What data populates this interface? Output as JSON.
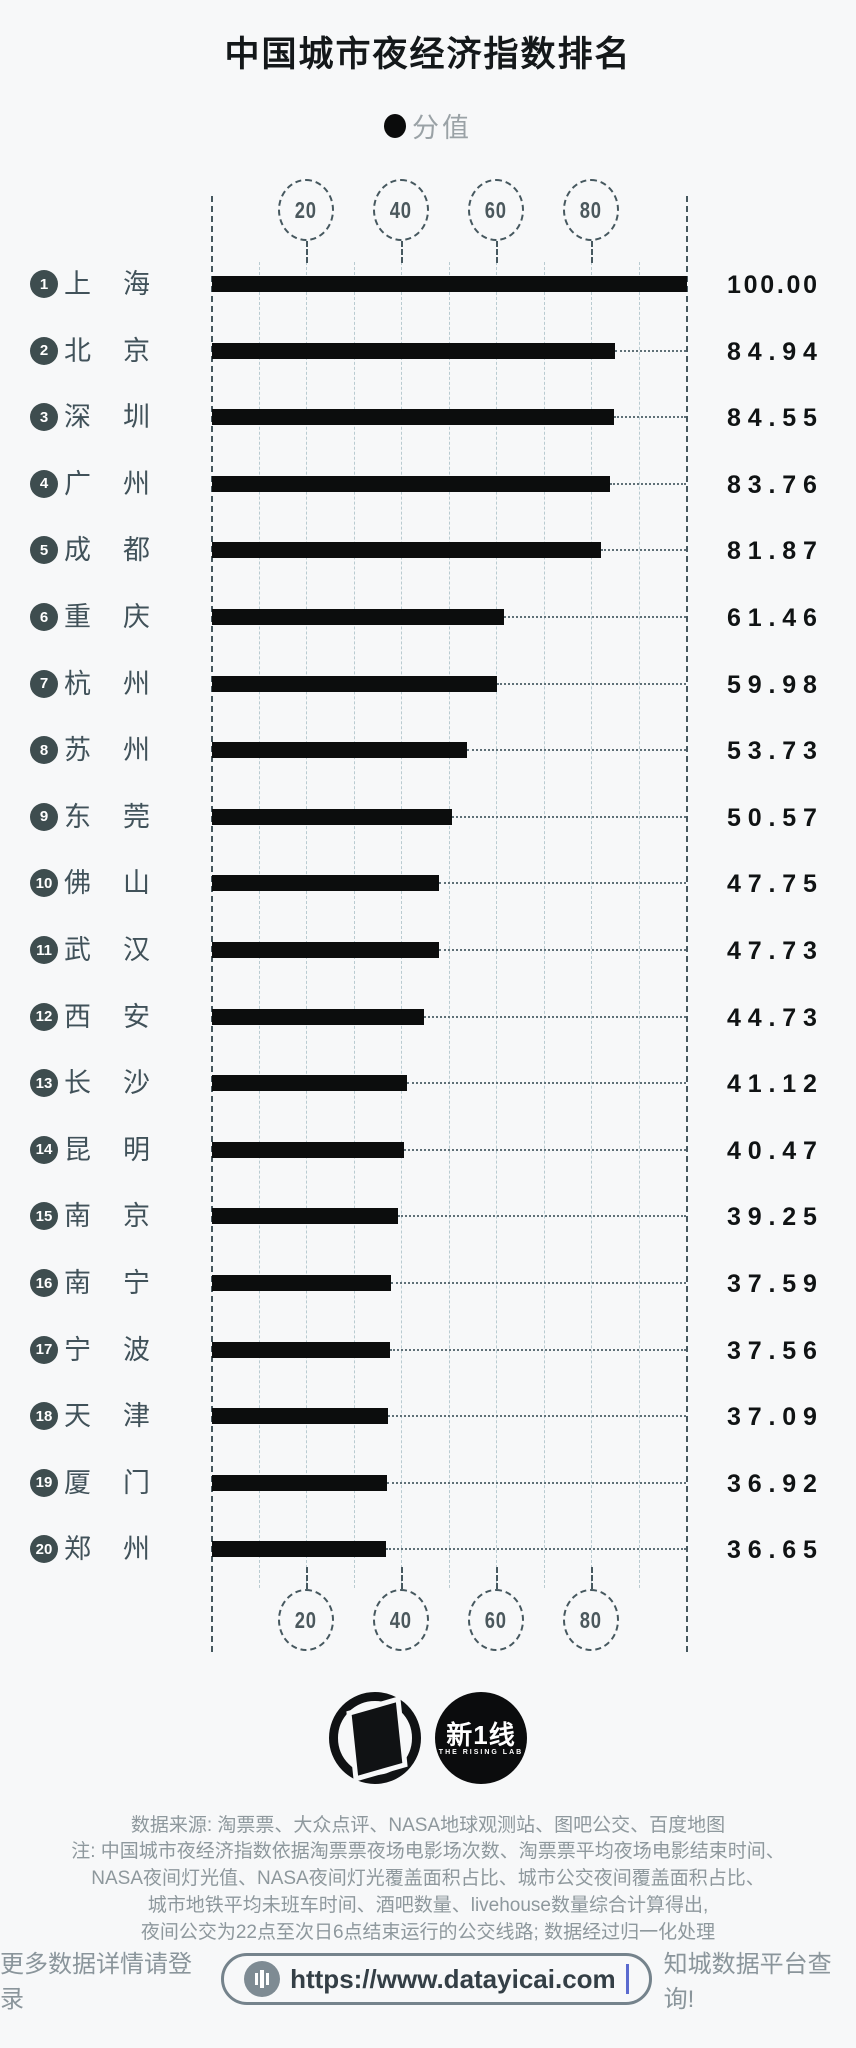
{
  "title": "中国城市夜经济指数排名",
  "legend": {
    "label": "分值"
  },
  "chart_data": {
    "type": "bar",
    "orientation": "horizontal",
    "title": "中国城市夜经济指数排名",
    "series_name": "分值",
    "categories": [
      "上海",
      "北京",
      "深圳",
      "广州",
      "成都",
      "重庆",
      "杭州",
      "苏州",
      "东莞",
      "佛山",
      "武汉",
      "西安",
      "长沙",
      "昆明",
      "南京",
      "南宁",
      "宁波",
      "天津",
      "厦门",
      "郑州"
    ],
    "ranks": [
      1,
      2,
      3,
      4,
      5,
      6,
      7,
      8,
      9,
      10,
      11,
      12,
      13,
      14,
      15,
      16,
      17,
      18,
      19,
      20
    ],
    "values": [
      100.0,
      84.94,
      84.55,
      83.76,
      81.87,
      61.46,
      59.98,
      53.73,
      50.57,
      47.75,
      47.73,
      44.73,
      41.12,
      40.47,
      39.25,
      37.59,
      37.56,
      37.09,
      36.92,
      36.65
    ],
    "value_labels": [
      "100.00",
      "84.94",
      "84.55",
      "83.76",
      "81.87",
      "61.46",
      "59.98",
      "53.73",
      "50.57",
      "47.75",
      "47.73",
      "44.73",
      "41.12",
      "40.47",
      "39.25",
      "37.59",
      "37.56",
      "37.09",
      "36.92",
      "36.65"
    ],
    "xlim": [
      0,
      100
    ],
    "ticks": [
      20,
      40,
      60,
      80
    ],
    "grid": "dashed vertical every 10",
    "legend_position": "top"
  },
  "logos": {
    "dt_logo": "DT财经",
    "rising_lab_cn": "新1线",
    "rising_lab_en": "THE RISING LAB"
  },
  "footer": {
    "source": "数据来源: 淘票票、大众点评、NASA地球观测站、图吧公交、百度地图",
    "notes": [
      "注: 中国城市夜经济指数依据淘票票夜场电影场次数、淘票票平均夜场电影结束时间、",
      "NASA夜间灯光值、NASA夜间灯光覆盖面积占比、城市公交夜间覆盖面积占比、",
      "城市地铁平均未班车时间、酒吧数量、livehouse数量综合计算得出,",
      "夜间公交为22点至次日6点结束运行的公交线路; 数据经过归一化处理"
    ],
    "cta_left": "更多数据详情请登录",
    "cta_url": "https://www.datayicai.com",
    "cta_right": "知城数据平台查询!"
  },
  "colors": {
    "background": "#f7f8f9",
    "bar": "#0c0d0d",
    "badge": "#3e4d4f",
    "axis": "#46585f",
    "gridline": "#b9cbd1",
    "muted_text": "#8e989d",
    "value_text": "#101314",
    "cursor": "#5a6acf"
  }
}
